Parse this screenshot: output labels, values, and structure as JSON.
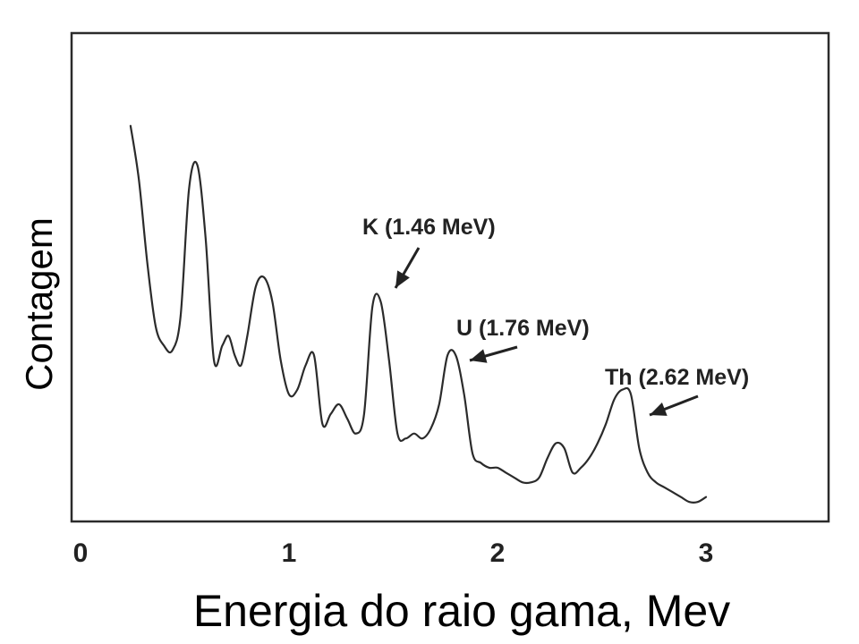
{
  "chart_data": {
    "type": "line",
    "title": "",
    "xlabel": "Energia do raio gama, Mev",
    "ylabel": "Contagem",
    "xlim": [
      0,
      3.6
    ],
    "ylim": [
      0,
      100
    ],
    "x_ticks": [
      0,
      1,
      2,
      3
    ],
    "x_tick_labels": [
      "0",
      "1",
      "2",
      "3"
    ],
    "grid": false,
    "legend": "none",
    "line_color": "#2b2b2b",
    "series": [
      {
        "x": [
          0.24,
          0.28,
          0.32,
          0.36,
          0.4,
          0.44,
          0.48,
          0.52,
          0.56,
          0.6,
          0.64,
          0.68,
          0.71,
          0.74,
          0.77,
          0.8,
          0.84,
          0.88,
          0.92,
          0.96,
          1.0,
          1.04,
          1.08,
          1.12,
          1.16,
          1.2,
          1.24,
          1.28,
          1.32,
          1.36,
          1.4,
          1.44,
          1.48,
          1.52,
          1.56,
          1.6,
          1.64,
          1.68,
          1.72,
          1.76,
          1.8,
          1.84,
          1.88,
          1.92,
          1.96,
          2.0,
          2.04,
          2.08,
          2.12,
          2.16,
          2.2,
          2.24,
          2.28,
          2.32,
          2.36,
          2.4,
          2.44,
          2.48,
          2.52,
          2.56,
          2.6,
          2.64,
          2.68,
          2.72,
          2.76,
          2.8,
          2.84,
          2.88,
          2.92,
          2.96,
          3.0
        ],
        "y": [
          81,
          70,
          53,
          40,
          36,
          35,
          42,
          68,
          73,
          58,
          33,
          36,
          38,
          34,
          32,
          38,
          48,
          50,
          45,
          33,
          26,
          27,
          32,
          34,
          20,
          22,
          24,
          21,
          18,
          22,
          44,
          45,
          33,
          18,
          17,
          18,
          17,
          19,
          24,
          34,
          34,
          26,
          14,
          12,
          11,
          11,
          10,
          9,
          8,
          8,
          9,
          13,
          16,
          15,
          10,
          11,
          13,
          16,
          20,
          25,
          27,
          26,
          15,
          10,
          8,
          7,
          6,
          5,
          4,
          4,
          5
        ]
      }
    ],
    "annotations": [
      {
        "text": "K (1.46 MeV)",
        "x": 1.46,
        "y": 45
      },
      {
        "text": "U (1.76 MeV)",
        "x": 1.76,
        "y": 34
      },
      {
        "text": "Th (2.62 MeV)",
        "x": 2.62,
        "y": 27
      }
    ]
  }
}
